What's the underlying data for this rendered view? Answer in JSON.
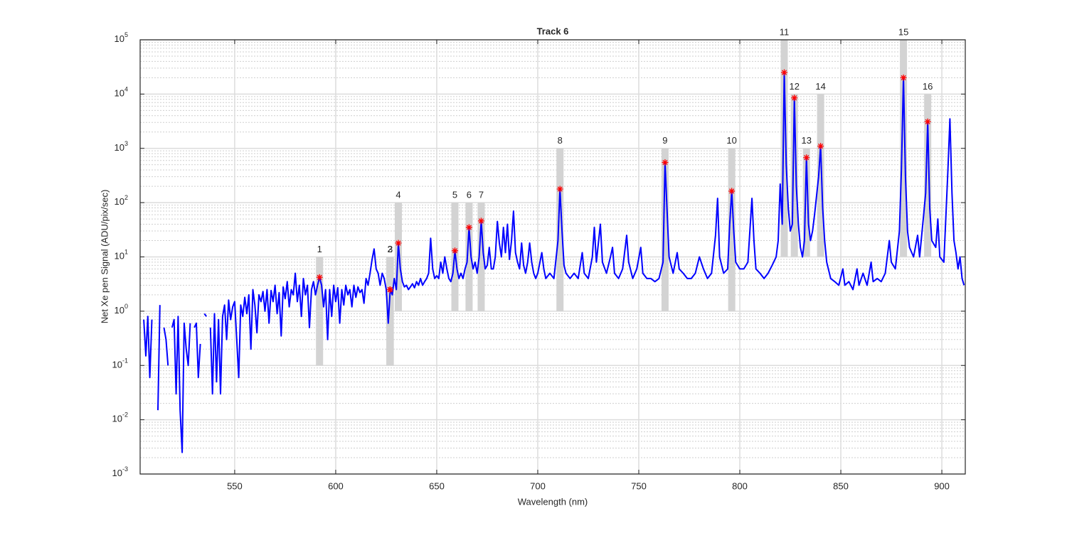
{
  "chart_data": {
    "type": "line",
    "title": "Track 6",
    "xlabel": "Wavelength (nm)",
    "ylabel": "Net Xe pen Signal (ADU/pix/sec)",
    "xlim": [
      503.2,
      911.6
    ],
    "ylim": [
      0.001,
      100000
    ],
    "yscale": "log",
    "grid": true,
    "minor_grid": true,
    "xticks": [
      550,
      600,
      650,
      700,
      750,
      800,
      850,
      900
    ],
    "yticks": [
      {
        "value": 0.001,
        "label": "10",
        "exponent": "-3"
      },
      {
        "value": 0.01,
        "label": "10",
        "exponent": "-2"
      },
      {
        "value": 0.1,
        "label": "10",
        "exponent": "-1"
      },
      {
        "value": 1,
        "label": "10",
        "exponent": "0"
      },
      {
        "value": 10,
        "label": "10",
        "exponent": "1"
      },
      {
        "value": 100,
        "label": "10",
        "exponent": "2"
      },
      {
        "value": 1000,
        "label": "10",
        "exponent": "3"
      },
      {
        "value": 10000,
        "label": "10",
        "exponent": "4"
      },
      {
        "value": 100000,
        "label": "10",
        "exponent": "5"
      }
    ],
    "series": [
      {
        "color": "#0000ff",
        "x": [
          505,
          506,
          507,
          508,
          509,
          510,
          512,
          513,
          514,
          515,
          516,
          517,
          518,
          519,
          520,
          521,
          522,
          523,
          524,
          525,
          526,
          527,
          528,
          529,
          530,
          531,
          532,
          533,
          534,
          535,
          536,
          537,
          538,
          539,
          540,
          541,
          542,
          543,
          544,
          545,
          546,
          547,
          548,
          549,
          550,
          551,
          552,
          553,
          554,
          555,
          556,
          557,
          558,
          559,
          560,
          561,
          562,
          563,
          564,
          565,
          566,
          567,
          568,
          569,
          570,
          571,
          572,
          573,
          574,
          575,
          576,
          577,
          578,
          579,
          580,
          581,
          582,
          583,
          584,
          585,
          586,
          587,
          588,
          589,
          590,
          591,
          592,
          593,
          594,
          595,
          596,
          597,
          598,
          599,
          600,
          601,
          602,
          603,
          604,
          605,
          606,
          607,
          608,
          609,
          610,
          611,
          612,
          613,
          614,
          615,
          616,
          617,
          618,
          619,
          620,
          621,
          622,
          623,
          624,
          625,
          626,
          627,
          628,
          629,
          630,
          631,
          632,
          633,
          634,
          635,
          636,
          637,
          638,
          639,
          640,
          641,
          642,
          643,
          644,
          645,
          646,
          647,
          648,
          649,
          650,
          651,
          652,
          653,
          654,
          655,
          656,
          657,
          658,
          659,
          660,
          661,
          662,
          663,
          664,
          665,
          666,
          667,
          668,
          669,
          670,
          671,
          672,
          673,
          674,
          675,
          676,
          677,
          678,
          679,
          680,
          681,
          682,
          683,
          684,
          685,
          686,
          687,
          688,
          689,
          690,
          691,
          692,
          693,
          694,
          695,
          696,
          697,
          698,
          699,
          700,
          702,
          703,
          704,
          706,
          708,
          710,
          711,
          712,
          713,
          714,
          716,
          718,
          720,
          722,
          723,
          725,
          727,
          728,
          729,
          731,
          732,
          734,
          736,
          737,
          738,
          740,
          742,
          744,
          745,
          747,
          749,
          751,
          752,
          754,
          756,
          758,
          760,
          762,
          763,
          764,
          765,
          767,
          769,
          770,
          772,
          774,
          776,
          778,
          780,
          782,
          784,
          786,
          788,
          789,
          790,
          792,
          794,
          795,
          796,
          797,
          798,
          800,
          802,
          804,
          806,
          807,
          808,
          810,
          812,
          814,
          816,
          818,
          819,
          820,
          821,
          822,
          823,
          824,
          825,
          826,
          827,
          828,
          829,
          830,
          831,
          832,
          833,
          834,
          835,
          836,
          837,
          839,
          840,
          841,
          842,
          843,
          845,
          847,
          849,
          851,
          852,
          854,
          856,
          858,
          859,
          861,
          863,
          865,
          866,
          868,
          870,
          872,
          874,
          875,
          877,
          879,
          880,
          881,
          882,
          883,
          884,
          886,
          888,
          889,
          891,
          892,
          893,
          894,
          895,
          897,
          898,
          899,
          901,
          903,
          904,
          905,
          906,
          907,
          908,
          909,
          910,
          911
        ],
        "y": [
          0.7,
          0.15,
          0.8,
          0.06,
          0.7,
          null,
          0.015,
          1.3,
          null,
          0.5,
          0.3,
          0.1,
          null,
          0.5,
          0.7,
          0.03,
          0.8,
          0.015,
          0.0025,
          0.6,
          0.2,
          0.1,
          0.6,
          null,
          0.5,
          0.6,
          0.06,
          0.25,
          null,
          0.9,
          0.8,
          null,
          0.5,
          0.03,
          0.9,
          0.05,
          0.7,
          0.03,
          0.8,
          1.3,
          0.3,
          1.6,
          0.7,
          1.2,
          1.5,
          0.3,
          0.06,
          1.3,
          0.8,
          1.8,
          0.9,
          2,
          0.2,
          2.5,
          1.3,
          0.4,
          2,
          1.5,
          2.3,
          1,
          2.5,
          0.6,
          2.4,
          1.5,
          3,
          0.9,
          2.2,
          0.35,
          2.8,
          1.7,
          3.5,
          1.2,
          2.5,
          2,
          5,
          1.5,
          3,
          0.8,
          4,
          2,
          3,
          0.5,
          2.5,
          3.5,
          2,
          3,
          4.2,
          3,
          1.2,
          2.5,
          0.3,
          2.5,
          0.8,
          3,
          1.5,
          2.7,
          0.6,
          2.5,
          1.3,
          3,
          2,
          2.5,
          1.2,
          3,
          1.8,
          2.8,
          2.2,
          2.5,
          1.4,
          4,
          3,
          5,
          9,
          14,
          6,
          5,
          3,
          5,
          4,
          2.5,
          0.6,
          2.5,
          2,
          4,
          2.5,
          18,
          6,
          3.5,
          2.8,
          3,
          2.5,
          2.8,
          3.2,
          2.7,
          3.5,
          3,
          4,
          3,
          3.5,
          4,
          5,
          22,
          6,
          4,
          4.5,
          4,
          8,
          5,
          10,
          6,
          4,
          3.5,
          5,
          13,
          6,
          4,
          5,
          4,
          6,
          8,
          35,
          10,
          6,
          8,
          5,
          10,
          46,
          12,
          6,
          7,
          15,
          6,
          6,
          10,
          45,
          18,
          10,
          35,
          12,
          40,
          9,
          20,
          70,
          12,
          8,
          6,
          18,
          7,
          5,
          8,
          18,
          8,
          5,
          4,
          5,
          12,
          6,
          4,
          5,
          4,
          20,
          178,
          30,
          7,
          5,
          4,
          5,
          4,
          12,
          5,
          4,
          10,
          35,
          8,
          40,
          8,
          5,
          10,
          15,
          5,
          4,
          6,
          25,
          8,
          4,
          6,
          15,
          5,
          4,
          4,
          3.5,
          4,
          8,
          550,
          70,
          10,
          5,
          12,
          6,
          5,
          4,
          4,
          5,
          10,
          6,
          4,
          5,
          25,
          120,
          10,
          5,
          6,
          40,
          163,
          30,
          8,
          6,
          6,
          8,
          120,
          20,
          6,
          5,
          4,
          5,
          7,
          10,
          20,
          220,
          40,
          25000,
          500,
          80,
          30,
          40,
          8500,
          200,
          40,
          15,
          10,
          20,
          675,
          40,
          20,
          30,
          60,
          300,
          1100,
          80,
          20,
          8,
          4,
          3.5,
          3,
          6,
          3,
          3.5,
          2.5,
          6,
          3,
          5,
          3,
          8,
          3.5,
          4,
          3.5,
          5,
          20,
          8,
          6,
          30,
          400,
          20000,
          300,
          30,
          15,
          10,
          25,
          10,
          60,
          150,
          3100,
          80,
          20,
          15,
          50,
          10,
          8,
          400,
          3500,
          150,
          20,
          12,
          6,
          10,
          4,
          3
        ]
      }
    ],
    "peak_color": "#ff0000",
    "band_color": "#d3d3d3",
    "peaks": [
      {
        "label": "1",
        "x": 592,
        "y": 4.2,
        "range": [
          0.1,
          10
        ]
      },
      {
        "label": "2",
        "x": 626.8,
        "y": 2.5,
        "range": [
          0.1,
          10
        ]
      },
      {
        "label": "3",
        "x": 627,
        "y": 2.5,
        "range": [
          0.1,
          10
        ]
      },
      {
        "label": "4",
        "x": 631,
        "y": 18,
        "range": [
          1,
          100
        ]
      },
      {
        "label": "5",
        "x": 659,
        "y": 13,
        "range": [
          1,
          100
        ]
      },
      {
        "label": "6",
        "x": 666,
        "y": 35,
        "range": [
          1,
          100
        ]
      },
      {
        "label": "7",
        "x": 672,
        "y": 46,
        "range": [
          1,
          100
        ]
      },
      {
        "label": "8",
        "x": 711,
        "y": 178,
        "range": [
          1,
          1000
        ]
      },
      {
        "label": "9",
        "x": 763,
        "y": 550,
        "range": [
          1,
          1000
        ]
      },
      {
        "label": "10",
        "x": 796,
        "y": 163,
        "range": [
          1,
          1000
        ]
      },
      {
        "label": "11",
        "x": 822,
        "y": 25000,
        "range": [
          10,
          100000
        ]
      },
      {
        "label": "12",
        "x": 827,
        "y": 8500,
        "range": [
          10,
          10000
        ]
      },
      {
        "label": "13",
        "x": 833,
        "y": 675,
        "range": [
          10,
          1000
        ]
      },
      {
        "label": "14",
        "x": 840,
        "y": 1100,
        "range": [
          10,
          10000
        ]
      },
      {
        "label": "15",
        "x": 881,
        "y": 20000,
        "range": [
          10,
          100000
        ]
      },
      {
        "label": "16",
        "x": 893,
        "y": 3100,
        "range": [
          10,
          10000
        ]
      }
    ]
  }
}
